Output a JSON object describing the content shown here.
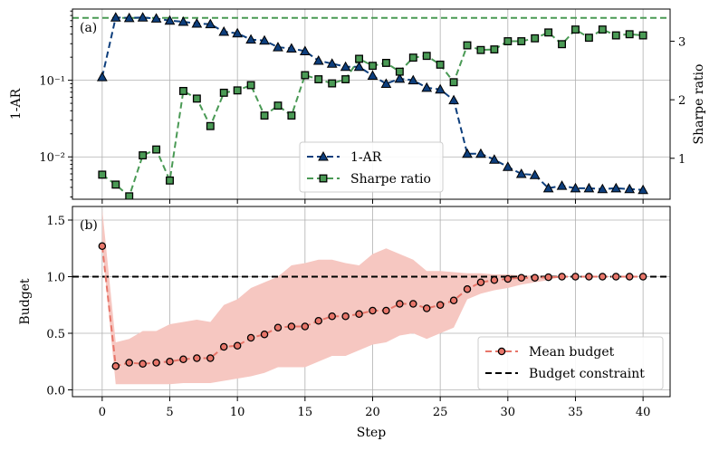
{
  "chart_data": [
    {
      "type": "line",
      "panel_label": "(a)",
      "x": [
        0,
        1,
        2,
        3,
        4,
        5,
        6,
        7,
        8,
        9,
        10,
        11,
        12,
        13,
        14,
        15,
        16,
        17,
        18,
        19,
        20,
        21,
        22,
        23,
        24,
        25,
        26,
        27,
        28,
        29,
        30,
        31,
        32,
        33,
        34,
        35,
        36,
        37,
        38,
        39,
        40
      ],
      "ylabel": "1-AR",
      "y_scale": "log",
      "ylim": [
        0.0028,
        0.85
      ],
      "y_ticks": [
        0.01,
        0.1
      ],
      "y_tick_labels": [
        "10⁻²",
        "10⁻¹"
      ],
      "y2label": "Sharpe ratio",
      "y2lim": [
        0.3,
        3.55
      ],
      "y2_ticks": [
        1,
        2,
        3
      ],
      "y2_tick_labels": [
        "1",
        "2",
        "3"
      ],
      "grid": true,
      "legend_position": "lower-center",
      "reference_line": {
        "axis": "y2",
        "value": 3.4,
        "color": "#4a9a55"
      },
      "series": [
        {
          "name": "1-AR",
          "axis": "left",
          "marker": "triangle",
          "color": "#0d3e7c",
          "values": [
            0.11,
            0.66,
            0.65,
            0.66,
            0.64,
            0.6,
            0.58,
            0.55,
            0.54,
            0.43,
            0.41,
            0.34,
            0.33,
            0.27,
            0.26,
            0.24,
            0.18,
            0.165,
            0.15,
            0.15,
            0.115,
            0.09,
            0.105,
            0.1,
            0.08,
            0.076,
            0.055,
            0.011,
            0.011,
            0.0092,
            0.0074,
            0.006,
            0.0058,
            0.0039,
            0.0042,
            0.0039,
            0.0039,
            0.0038,
            0.0039,
            0.0038,
            0.0037
          ]
        },
        {
          "name": "Sharpe ratio",
          "axis": "right",
          "marker": "square",
          "color": "#4a9a55",
          "values": [
            0.72,
            0.55,
            0.35,
            1.05,
            1.15,
            0.62,
            2.15,
            2.02,
            1.55,
            2.12,
            2.16,
            2.25,
            1.73,
            1.9,
            1.73,
            2.42,
            2.35,
            2.28,
            2.35,
            2.7,
            2.58,
            2.63,
            2.48,
            2.72,
            2.75,
            2.6,
            2.3,
            2.93,
            2.85,
            2.86,
            3.0,
            3.0,
            3.05,
            3.15,
            2.95,
            3.2,
            3.06,
            3.2,
            3.1,
            3.12,
            3.1
          ]
        }
      ]
    },
    {
      "type": "line",
      "panel_label": "(b)",
      "x": [
        0,
        1,
        2,
        3,
        4,
        5,
        6,
        7,
        8,
        9,
        10,
        11,
        12,
        13,
        14,
        15,
        16,
        17,
        18,
        19,
        20,
        21,
        22,
        23,
        24,
        25,
        26,
        27,
        28,
        29,
        30,
        31,
        32,
        33,
        34,
        35,
        36,
        37,
        38,
        39,
        40
      ],
      "xlabel": "Step",
      "xlim": [
        -2.2,
        42
      ],
      "x_ticks": [
        0,
        5,
        10,
        15,
        20,
        25,
        30,
        35,
        40
      ],
      "ylabel": "Budget",
      "ylim": [
        -0.06,
        1.62
      ],
      "y_ticks": [
        0.0,
        0.5,
        1.0,
        1.5
      ],
      "y_tick_labels": [
        "0.0",
        "0.5",
        "1.0",
        "1.5"
      ],
      "grid": true,
      "legend_position": "lower-right",
      "series": [
        {
          "name": "Mean budget",
          "marker": "circle",
          "color": "#e8766a",
          "values": [
            1.27,
            0.21,
            0.24,
            0.23,
            0.24,
            0.25,
            0.27,
            0.28,
            0.28,
            0.38,
            0.39,
            0.46,
            0.49,
            0.55,
            0.56,
            0.56,
            0.61,
            0.65,
            0.65,
            0.67,
            0.7,
            0.7,
            0.76,
            0.76,
            0.72,
            0.75,
            0.79,
            0.89,
            0.95,
            0.97,
            0.98,
            0.99,
            0.99,
            0.995,
            1.0,
            1.0,
            1.0,
            1.0,
            1.0,
            1.0,
            1.0
          ]
        },
        {
          "name": "Budget constraint",
          "type": "hline",
          "value": 1.0,
          "color": "#000000"
        }
      ],
      "band": {
        "color": "#f6c7c1",
        "lower": [
          1.27,
          0.05,
          0.05,
          0.05,
          0.05,
          0.05,
          0.06,
          0.06,
          0.06,
          0.08,
          0.1,
          0.12,
          0.15,
          0.2,
          0.2,
          0.2,
          0.25,
          0.3,
          0.3,
          0.35,
          0.4,
          0.42,
          0.48,
          0.5,
          0.45,
          0.5,
          0.55,
          0.8,
          0.85,
          0.88,
          0.9,
          0.93,
          0.95,
          0.97,
          1.0,
          1.0,
          1.0,
          1.0,
          1.0,
          1.0,
          1.0
        ],
        "upper": [
          1.6,
          0.42,
          0.45,
          0.52,
          0.52,
          0.58,
          0.6,
          0.62,
          0.6,
          0.75,
          0.8,
          0.9,
          0.95,
          1.0,
          1.1,
          1.12,
          1.15,
          1.15,
          1.12,
          1.1,
          1.2,
          1.25,
          1.2,
          1.15,
          1.05,
          1.05,
          1.04,
          1.03,
          1.03,
          1.02,
          1.02,
          1.01,
          1.01,
          1.01,
          1.0,
          1.0,
          1.0,
          1.0,
          1.0,
          1.0,
          1.0
        ]
      }
    }
  ]
}
